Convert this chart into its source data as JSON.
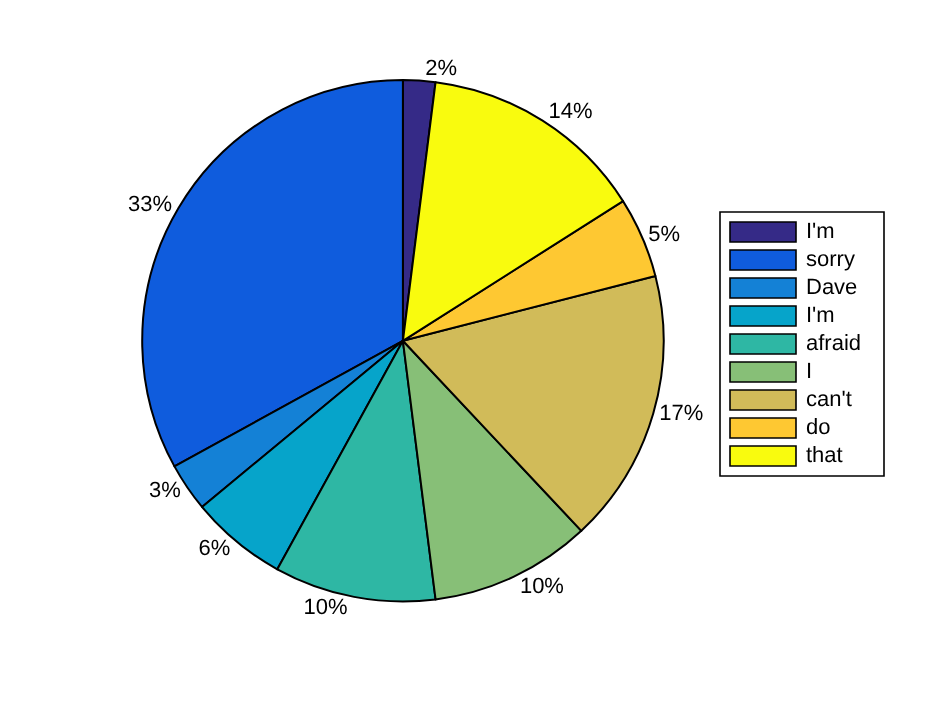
{
  "chart_data": {
    "type": "pie",
    "categories": [
      "I'm",
      "sorry",
      "Dave",
      "I'm",
      "afraid",
      "I",
      "can't",
      "do",
      "that"
    ],
    "values": [
      2,
      33,
      3,
      6,
      10,
      10,
      17,
      5,
      14
    ],
    "value_labels": [
      "2%",
      "33%",
      "3%",
      "6%",
      "10%",
      "10%",
      "17%",
      "5%",
      "14%"
    ],
    "colors": [
      "#352a87",
      "#0f5cdd",
      "#1481d6",
      "#06a4ca",
      "#2eb7a4",
      "#87bf77",
      "#d1bb59",
      "#fec832",
      "#f9fb0e"
    ],
    "legend": "right"
  }
}
